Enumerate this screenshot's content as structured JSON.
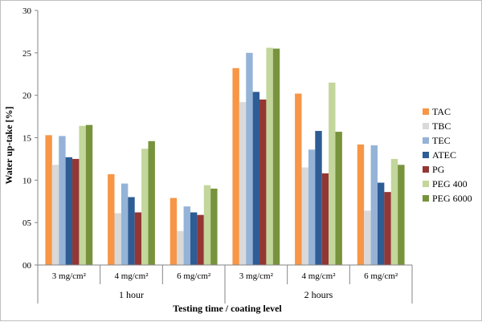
{
  "chart_data": {
    "type": "bar",
    "title": "",
    "xlabel": "Testing time / coating level",
    "ylabel": "Water up-take [%]",
    "ylim": [
      0,
      30
    ],
    "yticks": [
      0,
      5,
      10,
      15,
      20,
      25,
      30
    ],
    "ytick_labels": [
      "00",
      "05",
      "10",
      "15",
      "20",
      "25",
      "30"
    ],
    "grid": false,
    "legend_position": "right",
    "groups": [
      {
        "label": "1 hour",
        "categories": [
          "3 mg/cm²",
          "4 mg/cm²",
          "6 mg/cm²"
        ]
      },
      {
        "label": "2 hours",
        "categories": [
          "3 mg/cm²",
          "4 mg/cm²",
          "6 mg/cm²"
        ]
      }
    ],
    "categories": [
      "3 mg/cm²",
      "4 mg/cm²",
      "6 mg/cm²",
      "3 mg/cm²",
      "4 mg/cm²",
      "6 mg/cm²"
    ],
    "series": [
      {
        "name": "TAC",
        "color": "#F79646",
        "values": [
          15.3,
          10.7,
          7.9,
          23.2,
          20.2,
          14.2
        ]
      },
      {
        "name": "TBC",
        "color": "#D9D9D9",
        "values": [
          11.8,
          6.1,
          4.0,
          19.2,
          11.5,
          6.4
        ]
      },
      {
        "name": "TEC",
        "color": "#95B3D7",
        "values": [
          15.2,
          9.6,
          6.9,
          25.0,
          13.6,
          14.1
        ]
      },
      {
        "name": "ATEC",
        "color": "#2E5C94",
        "values": [
          12.7,
          8.0,
          6.2,
          20.4,
          15.8,
          9.7
        ]
      },
      {
        "name": "PG",
        "color": "#943634",
        "values": [
          12.5,
          6.2,
          5.9,
          19.5,
          10.8,
          8.6
        ]
      },
      {
        "name": "PEG 400",
        "color": "#C3D69B",
        "values": [
          16.4,
          13.7,
          9.4,
          25.6,
          21.5,
          12.5
        ]
      },
      {
        "name": "PEG 6000",
        "color": "#77933C",
        "values": [
          16.5,
          14.6,
          9.0,
          25.5,
          15.7,
          11.8
        ]
      }
    ]
  }
}
